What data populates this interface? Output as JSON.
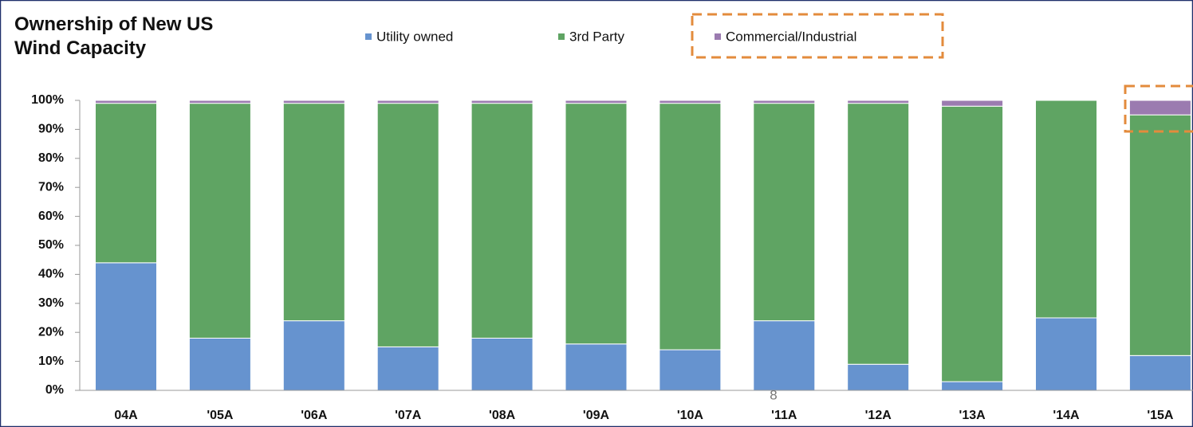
{
  "chart_data": {
    "type": "stacked_bar",
    "title": "Ownership of New US Wind Capacity",
    "page_number": "8",
    "categories": [
      "04A",
      "'05A",
      "'06A",
      "'07A",
      "'08A",
      "'09A",
      "'10A",
      "'11A",
      "'12A",
      "'13A",
      "'14A",
      "'15A"
    ],
    "series": [
      {
        "name": "Utility owned",
        "color": "#6693cf",
        "values": [
          44,
          18,
          24,
          15,
          18,
          16,
          14,
          24,
          9,
          3,
          25,
          12
        ]
      },
      {
        "name": "3rd Party",
        "color": "#5fa463",
        "values": [
          55,
          81,
          75,
          84,
          81,
          83,
          85,
          75,
          90,
          95,
          75,
          83
        ]
      },
      {
        "name": "Commercial/Industrial",
        "color": "#9b7bb0",
        "values": [
          1,
          1,
          1,
          1,
          1,
          1,
          1,
          1,
          1,
          2,
          0,
          5
        ]
      }
    ],
    "ylim": [
      0,
      100
    ],
    "yticks": [
      {
        "value": 0,
        "label": "0%"
      },
      {
        "value": 10,
        "label": "10%"
      },
      {
        "value": 20,
        "label": "20%"
      },
      {
        "value": 30,
        "label": "30%"
      },
      {
        "value": 40,
        "label": "40%"
      },
      {
        "value": 50,
        "label": "50%"
      },
      {
        "value": 60,
        "label": "60%"
      },
      {
        "value": 70,
        "label": "70%"
      },
      {
        "value": 80,
        "label": "80%"
      },
      {
        "value": 90,
        "label": "90%"
      },
      {
        "value": 100,
        "label": "100%"
      }
    ]
  }
}
